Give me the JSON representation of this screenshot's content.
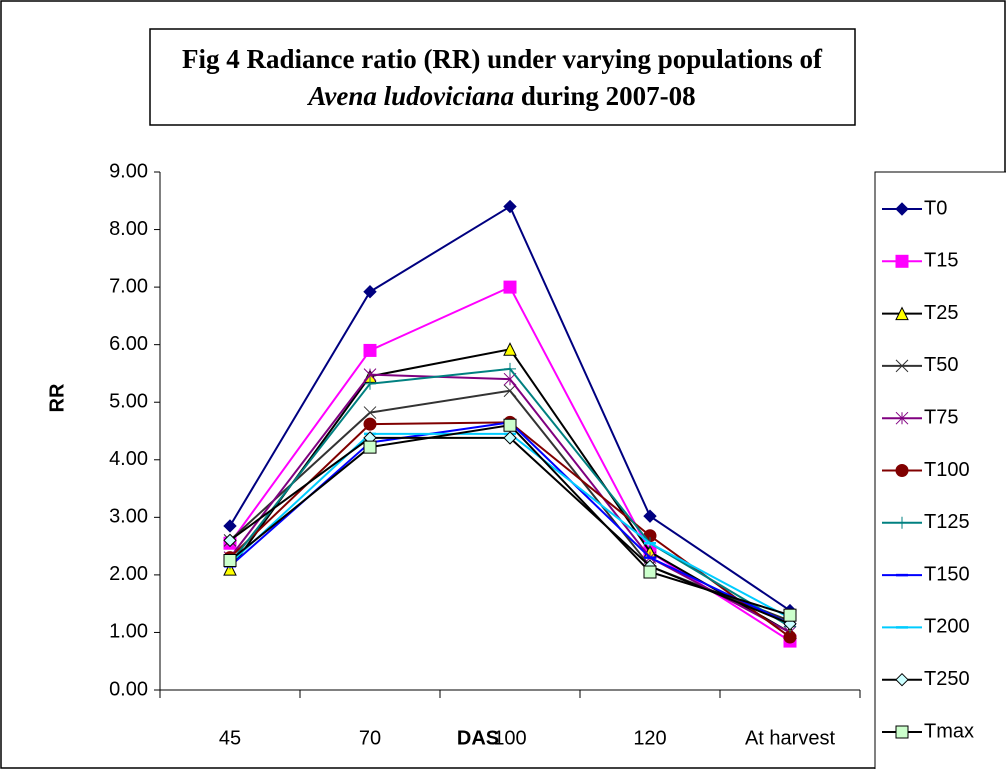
{
  "chart_data": {
    "type": "line",
    "title": [
      "Fig 4 Radiance ratio (RR) under varying populations of",
      "Avena ludoviciana",
      "during 2007-08"
    ],
    "x_label": "DAS",
    "y_label": "RR",
    "categories": [
      "45",
      "70",
      "100",
      "120",
      "At harvest"
    ],
    "ylim": [
      0,
      9
    ],
    "yticks": [
      {
        "value": 0,
        "label": "0.00"
      },
      {
        "value": 1,
        "label": "1.00"
      },
      {
        "value": 2,
        "label": "2.00"
      },
      {
        "value": 3,
        "label": "3.00"
      },
      {
        "value": 4,
        "label": "4.00"
      },
      {
        "value": 5,
        "label": "5.00"
      },
      {
        "value": 6,
        "label": "6.00"
      },
      {
        "value": 7,
        "label": "7.00"
      },
      {
        "value": 8,
        "label": "8.00"
      },
      {
        "value": 9,
        "label": "9.00"
      }
    ],
    "legend": "right",
    "series": [
      {
        "name": "T0",
        "color": "#000080",
        "marker": "diamond",
        "marker_fill": "#000080",
        "values": [
          2.85,
          6.92,
          8.4,
          3.02,
          1.38
        ]
      },
      {
        "name": "T15",
        "color": "#FF00FF",
        "marker": "square",
        "marker_fill": "#FF00FF",
        "values": [
          2.55,
          5.9,
          7.0,
          2.4,
          0.85
        ]
      },
      {
        "name": "T25",
        "color": "#000000",
        "marker": "triangle",
        "marker_fill": "#FFFF00",
        "values": [
          2.1,
          5.45,
          5.92,
          2.4,
          1.0
        ]
      },
      {
        "name": "T50",
        "color": "#333333",
        "marker": "x",
        "marker_fill": "#333333",
        "values": [
          2.6,
          4.82,
          5.2,
          2.15,
          1.2
        ]
      },
      {
        "name": "T75",
        "color": "#800080",
        "marker": "star",
        "marker_fill": "#800080",
        "values": [
          2.3,
          5.48,
          5.4,
          2.3,
          1.0
        ]
      },
      {
        "name": "T100",
        "color": "#800000",
        "marker": "circle",
        "marker_fill": "#800000",
        "values": [
          2.3,
          4.62,
          4.65,
          2.68,
          0.92
        ]
      },
      {
        "name": "T125",
        "color": "#008080",
        "marker": "plus",
        "marker_fill": "#008080",
        "values": [
          2.2,
          5.32,
          5.58,
          2.55,
          1.1
        ]
      },
      {
        "name": "T150",
        "color": "#0000FF",
        "marker": "dash",
        "marker_fill": "#0000FF",
        "values": [
          2.15,
          4.3,
          4.65,
          2.3,
          1.15
        ]
      },
      {
        "name": "T200",
        "color": "#00CCFF",
        "marker": "dash",
        "marker_fill": "#00CCFF",
        "values": [
          2.2,
          4.45,
          4.45,
          2.55,
          1.25
        ]
      },
      {
        "name": "T250",
        "color": "#000000",
        "marker": "diamond",
        "marker_fill": "#CCFFFF",
        "values": [
          2.6,
          4.38,
          4.38,
          2.15,
          1.15
        ]
      },
      {
        "name": "Tmax",
        "color": "#000000",
        "marker": "square",
        "marker_fill": "#CCFFCC",
        "values": [
          2.25,
          4.22,
          4.6,
          2.05,
          1.3
        ]
      }
    ]
  }
}
